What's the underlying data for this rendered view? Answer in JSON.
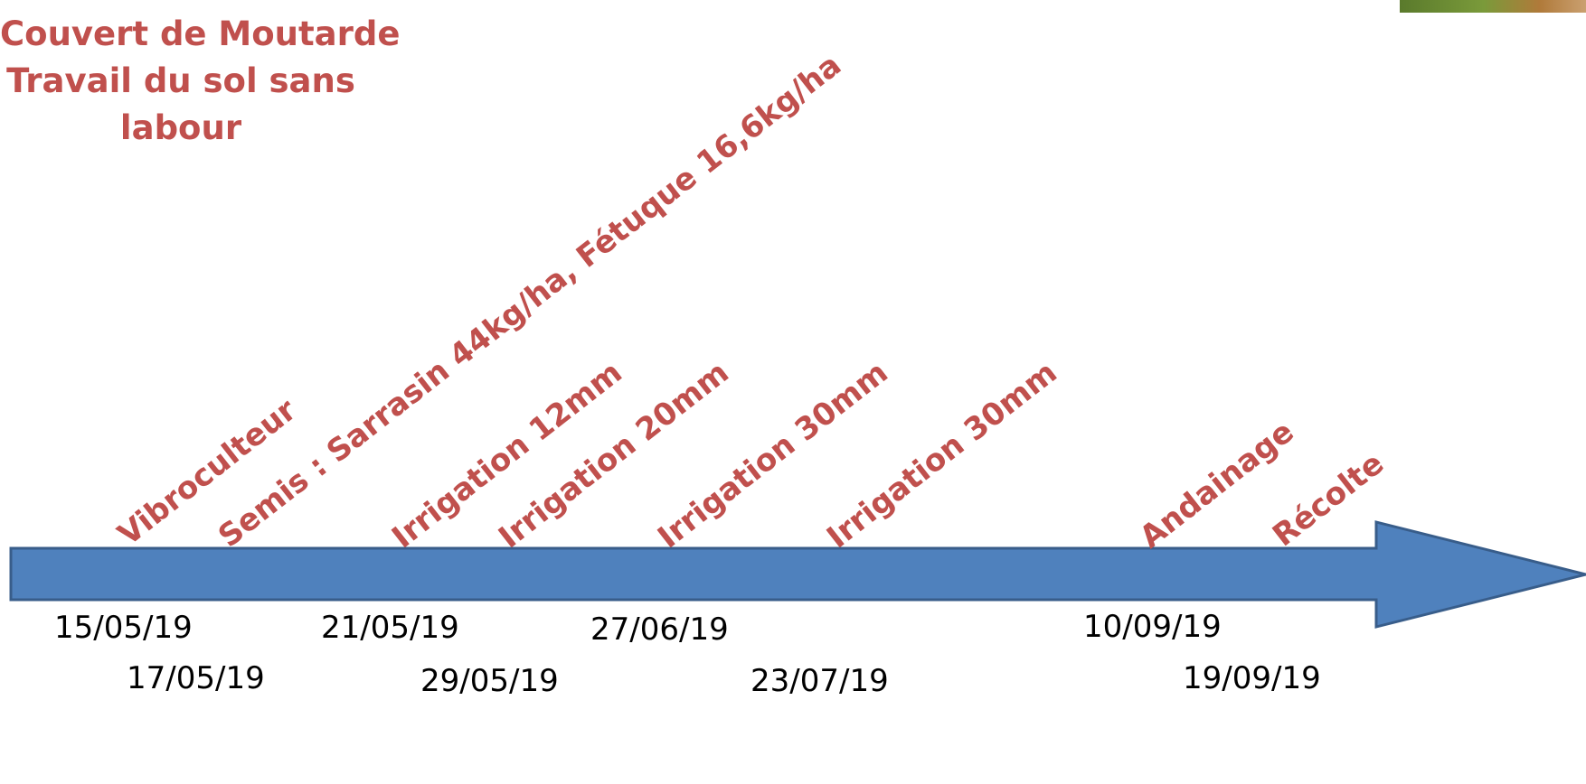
{
  "title": {
    "lines": [
      "Couvert de Moutarde",
      "Travail du sol sans",
      "labour"
    ]
  },
  "colors": {
    "event_text": "#c0504d",
    "arrow_fill": "#4f81bd",
    "arrow_stroke": "#385d8a",
    "date_text": "#000000"
  },
  "events": [
    {
      "label": "Vibroculteur"
    },
    {
      "label": "Semis : Sarrasin 44kg/ha, Fétuque 16,6kg/ha"
    },
    {
      "label": "Irrigation 12mm"
    },
    {
      "label": "Irrigation 20mm"
    },
    {
      "label": "Irrigation 30mm"
    },
    {
      "label": "Irrigation 30mm"
    },
    {
      "label": "Andainage"
    },
    {
      "label": "Récolte"
    }
  ],
  "dates": [
    {
      "text": "15/05/19"
    },
    {
      "text": "17/05/19"
    },
    {
      "text": "21/05/19"
    },
    {
      "text": "29/05/19"
    },
    {
      "text": "27/06/19"
    },
    {
      "text": "23/07/19"
    },
    {
      "text": "10/09/19"
    },
    {
      "text": "19/09/19"
    }
  ]
}
